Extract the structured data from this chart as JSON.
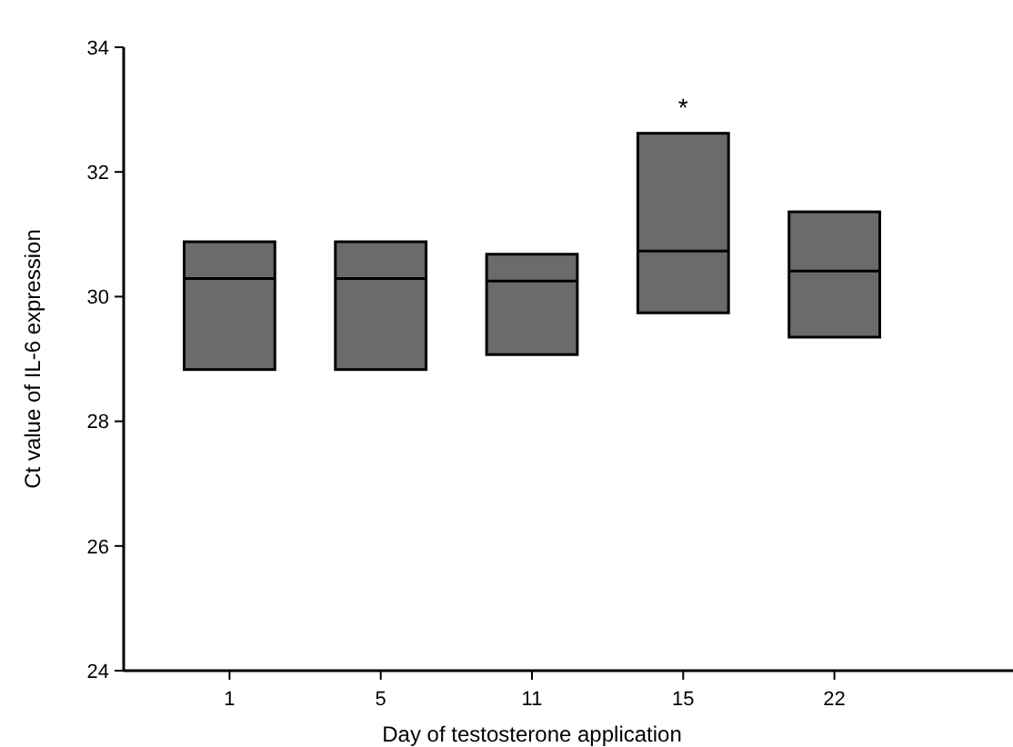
{
  "chart_data": {
    "type": "box",
    "xlabel": "Day of testosterone application",
    "ylabel": "Ct value of IL-6 expression",
    "categories": [
      "1",
      "5",
      "11",
      "15",
      "22"
    ],
    "boxes": [
      {
        "low": 28.83,
        "q1": 28.83,
        "median": 30.29,
        "q3": 30.88,
        "high": 30.88
      },
      {
        "low": 28.83,
        "q1": 28.83,
        "median": 30.29,
        "q3": 30.88,
        "high": 30.88
      },
      {
        "low": 29.07,
        "q1": 29.07,
        "median": 30.25,
        "q3": 30.68,
        "high": 30.68
      },
      {
        "low": 29.74,
        "q1": 29.74,
        "median": 30.73,
        "q3": 32.62,
        "high": 32.62
      },
      {
        "low": 29.35,
        "q1": 29.35,
        "median": 30.41,
        "q3": 31.36,
        "high": 31.36
      }
    ],
    "color": "#6b6b6b",
    "ylim": [
      24,
      34
    ],
    "yticks": [
      24,
      26,
      28,
      30,
      32,
      34
    ],
    "annotations": [
      {
        "text": "*",
        "x": "15",
        "y": 32.62
      }
    ]
  }
}
